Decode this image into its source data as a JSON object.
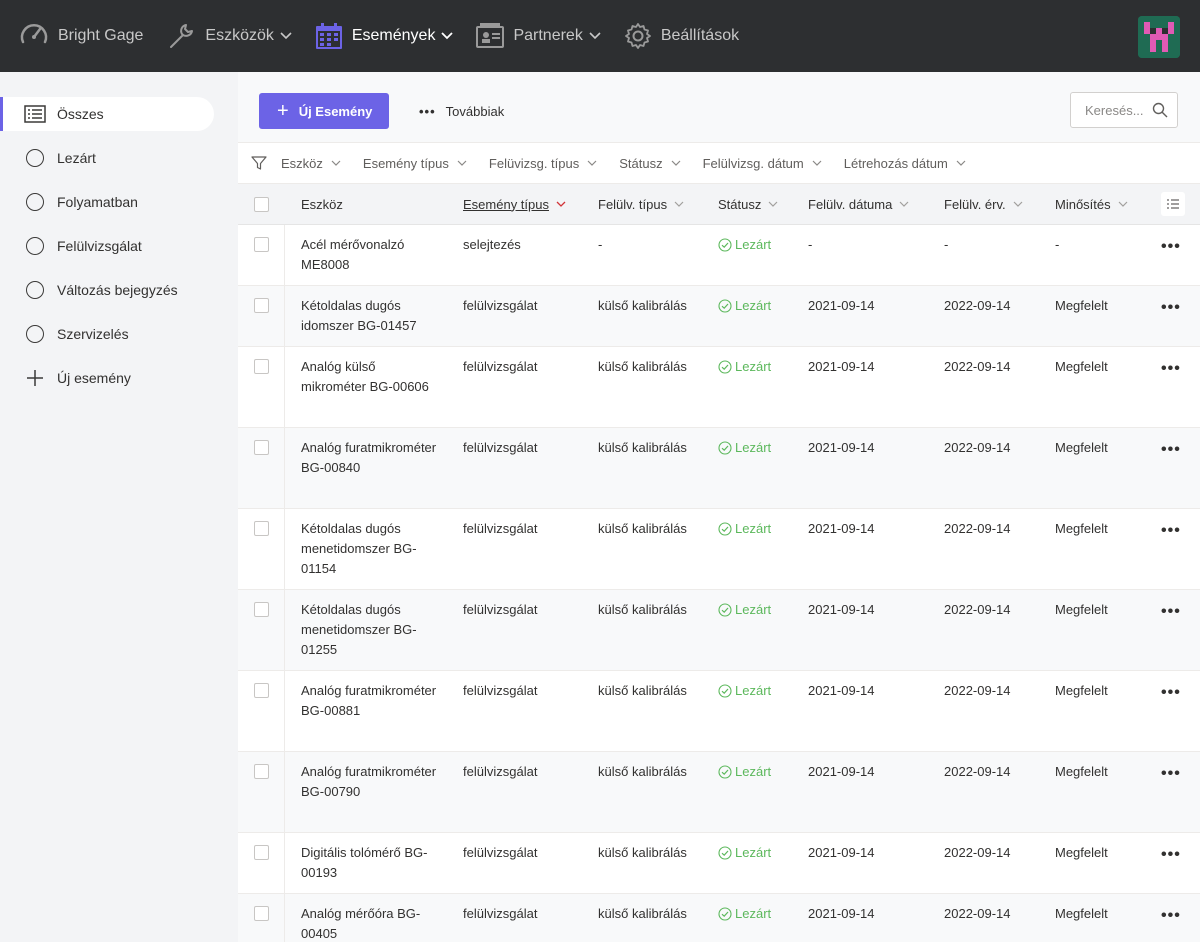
{
  "app": {
    "brand": "Bright Gage",
    "nav": [
      {
        "label": "Eszközök",
        "icon": "wrench-icon"
      },
      {
        "label": "Események",
        "icon": "calendar-icon"
      },
      {
        "label": "Partnerek",
        "icon": "partners-icon"
      },
      {
        "label": "Beállítások",
        "icon": "gear-icon"
      }
    ],
    "active_nav": "Események",
    "accent_color": "#6c63e6",
    "status_color": "#5cb85c"
  },
  "sidebar": {
    "items": [
      {
        "label": "Összes",
        "icon": "list-icon",
        "active": true
      },
      {
        "label": "Lezárt",
        "icon": "circle-icon"
      },
      {
        "label": "Folyamatban",
        "icon": "circle-icon"
      },
      {
        "label": "Felülvizsgálat",
        "icon": "circle-icon"
      },
      {
        "label": "Változás bejegyzés",
        "icon": "circle-icon"
      },
      {
        "label": "Szervizelés",
        "icon": "circle-icon"
      },
      {
        "label": "Új esemény",
        "icon": "plus-icon"
      }
    ]
  },
  "toolbar": {
    "new_label": "Új Esemény",
    "more_label": "Továbbiak",
    "search_placeholder": "Keresés..."
  },
  "filters": [
    "Eszköz",
    "Esemény típus",
    "Felüvizsg. típus",
    "Státusz",
    "Felülvizsg. dátum",
    "Létrehozás dátum"
  ],
  "table": {
    "columns": [
      "Eszköz",
      "Esemény típus",
      "Felülv. típus",
      "Státusz",
      "Felülv. dátuma",
      "Felülv. érv.",
      "Minősítés"
    ],
    "sorted_column": "Esemény típus",
    "rows": [
      {
        "tool": "Acél mérővonalzó ME8008",
        "type": "selejtezés",
        "review_type": "-",
        "status": "Lezárt",
        "review_date": "-",
        "valid_until": "-",
        "rating": "-"
      },
      {
        "tool": "Kétoldalas dugós idomszer BG-01457",
        "type": "felülvizsgálat",
        "review_type": "külső kalibrálás",
        "status": "Lezárt",
        "review_date": "2021-09-14",
        "valid_until": "2022-09-14",
        "rating": "Megfelelt"
      },
      {
        "tool": "Analóg külső mikrométer BG-00606",
        "type": "felülvizsgálat",
        "review_type": "külső kalibrálás",
        "status": "Lezárt",
        "review_date": "2021-09-14",
        "valid_until": "2022-09-14",
        "rating": "Megfelelt"
      },
      {
        "tool": "Analóg furatmikrométer BG-00840",
        "type": "felülvizsgálat",
        "review_type": "külső kalibrálás",
        "status": "Lezárt",
        "review_date": "2021-09-14",
        "valid_until": "2022-09-14",
        "rating": "Megfelelt"
      },
      {
        "tool": "Kétoldalas dugós menetidomszer BG-01154",
        "type": "felülvizsgálat",
        "review_type": "külső kalibrálás",
        "status": "Lezárt",
        "review_date": "2021-09-14",
        "valid_until": "2022-09-14",
        "rating": "Megfelelt"
      },
      {
        "tool": "Kétoldalas dugós menetidomszer BG-01255",
        "type": "felülvizsgálat",
        "review_type": "külső kalibrálás",
        "status": "Lezárt",
        "review_date": "2021-09-14",
        "valid_until": "2022-09-14",
        "rating": "Megfelelt"
      },
      {
        "tool": "Analóg furatmikrométer BG-00881",
        "type": "felülvizsgálat",
        "review_type": "külső kalibrálás",
        "status": "Lezárt",
        "review_date": "2021-09-14",
        "valid_until": "2022-09-14",
        "rating": "Megfelelt"
      },
      {
        "tool": "Analóg furatmikrométer BG-00790",
        "type": "felülvizsgálat",
        "review_type": "külső kalibrálás",
        "status": "Lezárt",
        "review_date": "2021-09-14",
        "valid_until": "2022-09-14",
        "rating": "Megfelelt"
      },
      {
        "tool": "Digitális tolómérő BG-00193",
        "type": "felülvizsgálat",
        "review_type": "külső kalibrálás",
        "status": "Lezárt",
        "review_date": "2021-09-14",
        "valid_until": "2022-09-14",
        "rating": "Megfelelt"
      },
      {
        "tool": "Analóg mérőóra BG-00405",
        "type": "felülvizsgálat",
        "review_type": "külső kalibrálás",
        "status": "Lezárt",
        "review_date": "2021-09-14",
        "valid_until": "2022-09-14",
        "rating": "Megfelelt"
      }
    ],
    "row_action": "•••"
  }
}
